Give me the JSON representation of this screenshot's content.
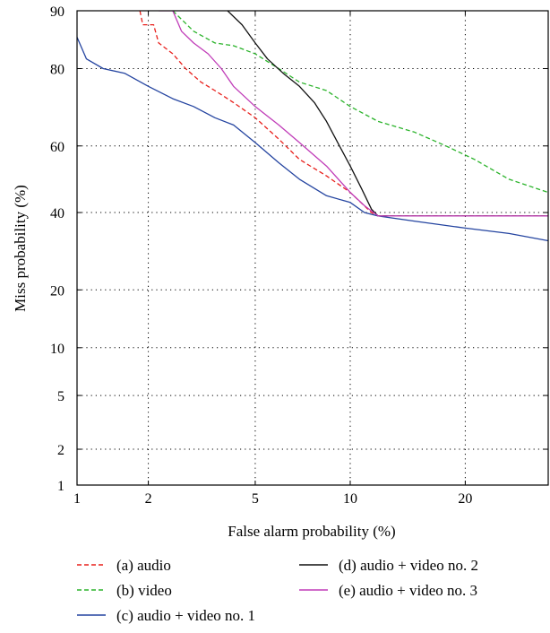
{
  "chart_data": {
    "type": "line",
    "title": "",
    "xlabel": "False alarm probability (%)",
    "ylabel": "Miss probability (%)",
    "x_scale": "normal-deviate",
    "y_scale": "normal-deviate",
    "xlim": [
      1,
      30
    ],
    "ylim": [
      1,
      90
    ],
    "x_ticks": [
      1,
      2,
      5,
      10,
      20
    ],
    "y_ticks": [
      1,
      2,
      5,
      10,
      20,
      40,
      60,
      80,
      90
    ],
    "grid": "dotted",
    "legend_position": "bottom",
    "series": [
      {
        "name": "(a) audio",
        "color": "#e8201c",
        "dash": "dashed",
        "points": [
          [
            1.85,
            90
          ],
          [
            1.9,
            88
          ],
          [
            2.1,
            88
          ],
          [
            2.2,
            85
          ],
          [
            2.5,
            83
          ],
          [
            2.8,
            80
          ],
          [
            3.2,
            77
          ],
          [
            3.6,
            75
          ],
          [
            4.2,
            72
          ],
          [
            5.0,
            68
          ],
          [
            6.0,
            62
          ],
          [
            7.0,
            56
          ],
          [
            8.5,
            51
          ],
          [
            10.0,
            46
          ],
          [
            11.5,
            40
          ],
          [
            12.0,
            39
          ],
          [
            30.0,
            39
          ]
        ]
      },
      {
        "name": "(b) video",
        "color": "#2ab32a",
        "dash": "dashed",
        "points": [
          [
            2.5,
            90
          ],
          [
            3.0,
            87
          ],
          [
            3.6,
            85
          ],
          [
            4.2,
            84.5
          ],
          [
            5.0,
            83
          ],
          [
            6.0,
            80
          ],
          [
            7.0,
            77
          ],
          [
            8.5,
            75
          ],
          [
            10.0,
            71
          ],
          [
            12.0,
            67
          ],
          [
            15.0,
            64
          ],
          [
            18.0,
            60
          ],
          [
            21.0,
            56
          ],
          [
            25.0,
            50
          ],
          [
            30.0,
            46
          ]
        ]
      },
      {
        "name": "(c) audio + video no. 1",
        "color": "#2444a0",
        "dash": "solid",
        "points": [
          [
            1.0,
            86
          ],
          [
            1.1,
            82
          ],
          [
            1.3,
            80
          ],
          [
            1.6,
            79
          ],
          [
            2.0,
            76
          ],
          [
            2.5,
            73
          ],
          [
            3.0,
            71
          ],
          [
            3.6,
            68
          ],
          [
            4.2,
            66
          ],
          [
            5.0,
            61
          ],
          [
            6.0,
            55
          ],
          [
            7.0,
            50
          ],
          [
            8.5,
            45
          ],
          [
            10.0,
            43
          ],
          [
            11.0,
            40
          ],
          [
            12.0,
            39
          ],
          [
            15.0,
            37.5
          ],
          [
            20.0,
            35.5
          ],
          [
            25.0,
            34
          ],
          [
            30.0,
            32
          ]
        ]
      },
      {
        "name": "(d) audio + video no. 2",
        "color": "#111111",
        "dash": "solid",
        "points": [
          [
            4.0,
            90
          ],
          [
            4.5,
            88
          ],
          [
            5.0,
            85
          ],
          [
            5.5,
            82
          ],
          [
            6.2,
            79
          ],
          [
            7.0,
            76
          ],
          [
            7.8,
            72
          ],
          [
            8.5,
            67
          ],
          [
            9.3,
            60
          ],
          [
            10.0,
            54
          ],
          [
            10.8,
            47
          ],
          [
            11.5,
            41
          ],
          [
            12.0,
            39
          ],
          [
            30.0,
            39
          ]
        ]
      },
      {
        "name": "(e) audio + video no. 3",
        "color": "#c03cb8",
        "dash": "solid",
        "points": [
          [
            2.2,
            90
          ],
          [
            2.5,
            90
          ],
          [
            2.7,
            87
          ],
          [
            3.0,
            85
          ],
          [
            3.4,
            83
          ],
          [
            3.8,
            80
          ],
          [
            4.2,
            76
          ],
          [
            5.0,
            71
          ],
          [
            6.0,
            66
          ],
          [
            7.0,
            61
          ],
          [
            8.5,
            54
          ],
          [
            10.0,
            46
          ],
          [
            11.0,
            42
          ],
          [
            12.0,
            39
          ],
          [
            30.0,
            39
          ]
        ]
      }
    ]
  }
}
